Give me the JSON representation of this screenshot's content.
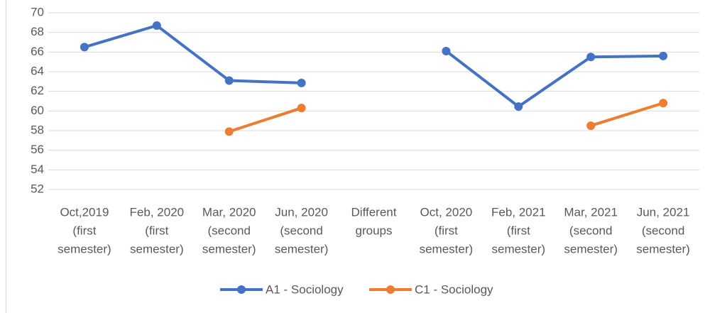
{
  "chart_data": {
    "type": "line",
    "categories": [
      [
        "Oct,2019",
        "(first",
        "semester)"
      ],
      [
        "Feb, 2020",
        "(first",
        "semester)"
      ],
      [
        "Mar, 2020",
        "(second",
        "semester)"
      ],
      [
        "Jun, 2020",
        "(second",
        "semester)"
      ],
      [
        "Different",
        "groups"
      ],
      [
        "Oct, 2020",
        "(first",
        "semester)"
      ],
      [
        "Feb, 2021",
        "(first",
        "semester)"
      ],
      [
        "Mar, 2021",
        "(second",
        "semester)"
      ],
      [
        "Jun, 2021",
        "(second",
        "semester)"
      ]
    ],
    "series": [
      {
        "name": "A1 - Sociology",
        "color": "#4472c4",
        "values": [
          66.5,
          68.7,
          63.1,
          62.85,
          null,
          66.1,
          60.45,
          65.5,
          65.6
        ]
      },
      {
        "name": "C1 - Sociology",
        "color": "#ed7d31",
        "values": [
          null,
          null,
          57.9,
          60.3,
          null,
          null,
          null,
          58.5,
          60.8
        ]
      }
    ],
    "ylim": [
      52,
      70
    ],
    "yticks": [
      52,
      54,
      56,
      58,
      60,
      62,
      64,
      66,
      68,
      70
    ],
    "grid": true,
    "legend": "bottom"
  }
}
